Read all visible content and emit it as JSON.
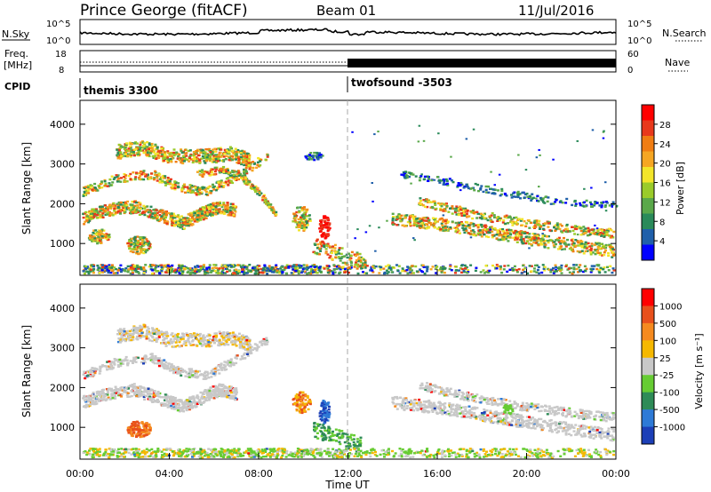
{
  "header": {
    "station": "Prince George (fitACF)",
    "beam": "Beam 01",
    "date": "11/Jul/2016"
  },
  "top_panels": {
    "nsky_label": "N.Sky",
    "nsky_ticks": [
      "10^5",
      "10^0"
    ],
    "nsearch_label": "N.Search",
    "nsearch_ticks": [
      "10^5",
      "10^0"
    ],
    "freq_label_1": "Freq.",
    "freq_label_2": "[MHz]",
    "freq_ticks": [
      "18",
      "8"
    ],
    "nave_label": "Nave",
    "nave_ticks": [
      "60",
      "0"
    ],
    "cpid_label": "CPID",
    "cpid_modes": [
      {
        "name": "themis 3300",
        "start_hour": 0,
        "end_hour": 12
      },
      {
        "name": "twofsound -3503",
        "start_hour": 12,
        "end_hour": 24
      }
    ]
  },
  "chart_data": [
    {
      "type": "heatmap",
      "name": "power",
      "ylabel": "Slant Range [km]",
      "yticks": [
        "4000",
        "3000",
        "2000",
        "1000"
      ],
      "ylim": [
        200,
        4600
      ],
      "xlim": [
        0,
        24
      ],
      "colorbar_label": "Power [dB]",
      "colorbar_ticks": [
        "28",
        "24",
        "20",
        "16",
        "12",
        "8",
        "4"
      ],
      "colorbar_range": [
        0,
        32
      ],
      "colorbar_colors": [
        "#0000ff",
        "#1f5faa",
        "#2a8a5a",
        "#5aa84a",
        "#9acb2a",
        "#f2e52a",
        "#f5a623",
        "#f07d13",
        "#e8391c",
        "#ff0000"
      ]
    },
    {
      "type": "heatmap",
      "name": "velocity",
      "ylabel": "Slant Range [km]",
      "yticks": [
        "4000",
        "3000",
        "2000",
        "1000"
      ],
      "ylim": [
        200,
        4600
      ],
      "xlim": [
        0,
        24
      ],
      "colorbar_label": "Velocity [m s⁻¹]",
      "colorbar_ticks": [
        "1000",
        "500",
        "100",
        "25",
        "-25",
        "-100",
        "-500",
        "-1000"
      ],
      "colorbar_colors": [
        "#1c3fb7",
        "#2e7ad6",
        "#2e8b57",
        "#66cc33",
        "#c8c8c8",
        "#f5b800",
        "#f58a1f",
        "#e8501c",
        "#ff0000"
      ]
    }
  ],
  "x_axis": {
    "ticks": [
      "00:00",
      "04:00",
      "08:00",
      "12:00",
      "16:00",
      "20:00",
      "00:00"
    ],
    "tick_hours": [
      0,
      4,
      8,
      12,
      16,
      20,
      24
    ],
    "label": "Time UT"
  }
}
